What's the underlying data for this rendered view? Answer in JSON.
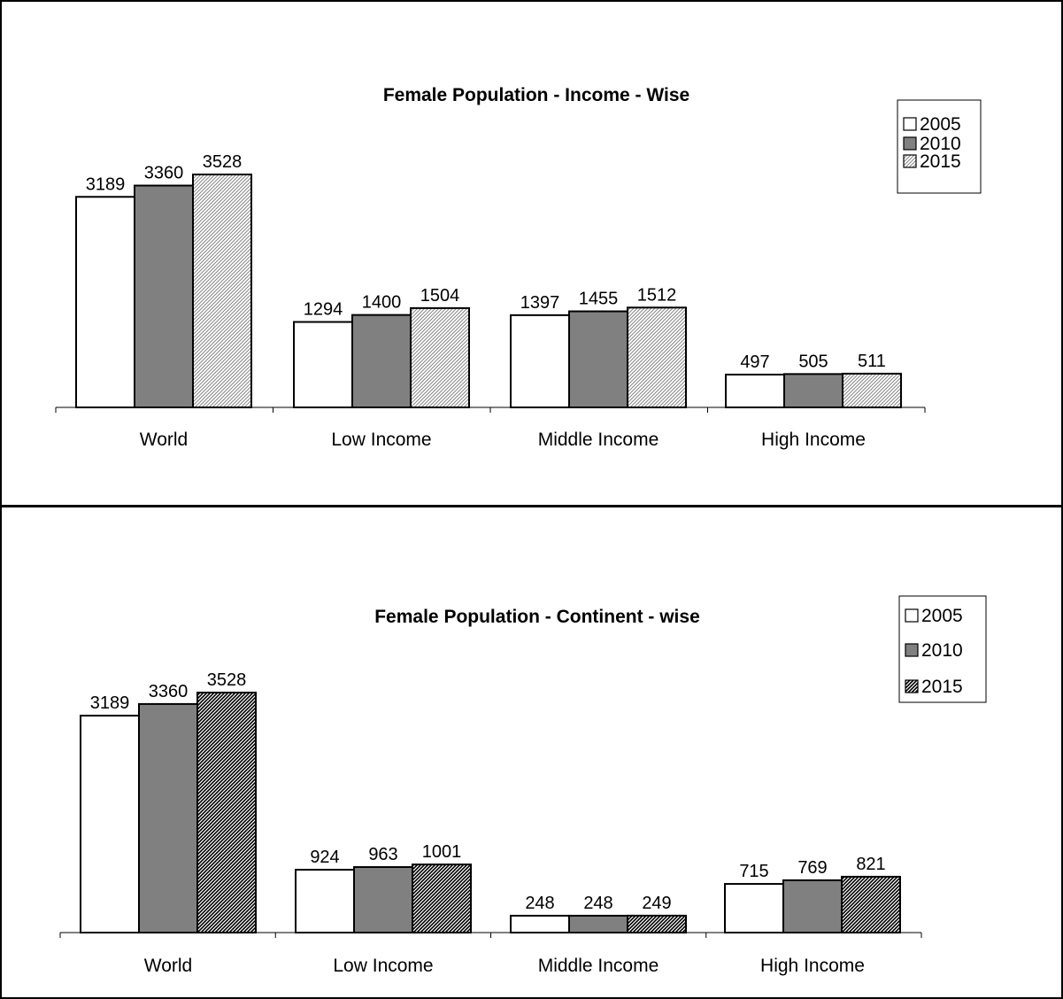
{
  "chart_data": [
    {
      "type": "bar",
      "title": "Female Population - Income - Wise",
      "xlabel": "",
      "ylabel": "",
      "categories": [
        "World",
        "Low Income",
        "Middle Income",
        "High Income"
      ],
      "series": [
        {
          "name": "2005",
          "values": [
            3189,
            1294,
            1397,
            497
          ],
          "fill": "white"
        },
        {
          "name": "2010",
          "values": [
            3360,
            1400,
            1455,
            505
          ],
          "fill": "gray"
        },
        {
          "name": "2015",
          "values": [
            3528,
            1504,
            1512,
            511
          ],
          "fill": "light-hatch"
        }
      ],
      "ylim": [
        0,
        3528
      ],
      "grid": false,
      "legend": "top-right",
      "colors": {
        "gray": "#808080",
        "hatch_light": "#c0c0c0",
        "outline": "#000000"
      }
    },
    {
      "type": "bar",
      "title": "Female Population - Continent - wise",
      "xlabel": "",
      "ylabel": "",
      "categories": [
        "World",
        "Low Income",
        "Middle Income",
        "High Income"
      ],
      "series": [
        {
          "name": "2005",
          "values": [
            3189,
            924,
            248,
            715
          ],
          "fill": "white"
        },
        {
          "name": "2010",
          "values": [
            3360,
            963,
            248,
            769
          ],
          "fill": "gray"
        },
        {
          "name": "2015",
          "values": [
            3528,
            1001,
            249,
            821
          ],
          "fill": "dark-hatch"
        }
      ],
      "ylim": [
        0,
        3528
      ],
      "grid": false,
      "legend": "top-right",
      "colors": {
        "gray": "#808080",
        "hatch_dark": "#000000",
        "outline": "#000000"
      }
    }
  ]
}
